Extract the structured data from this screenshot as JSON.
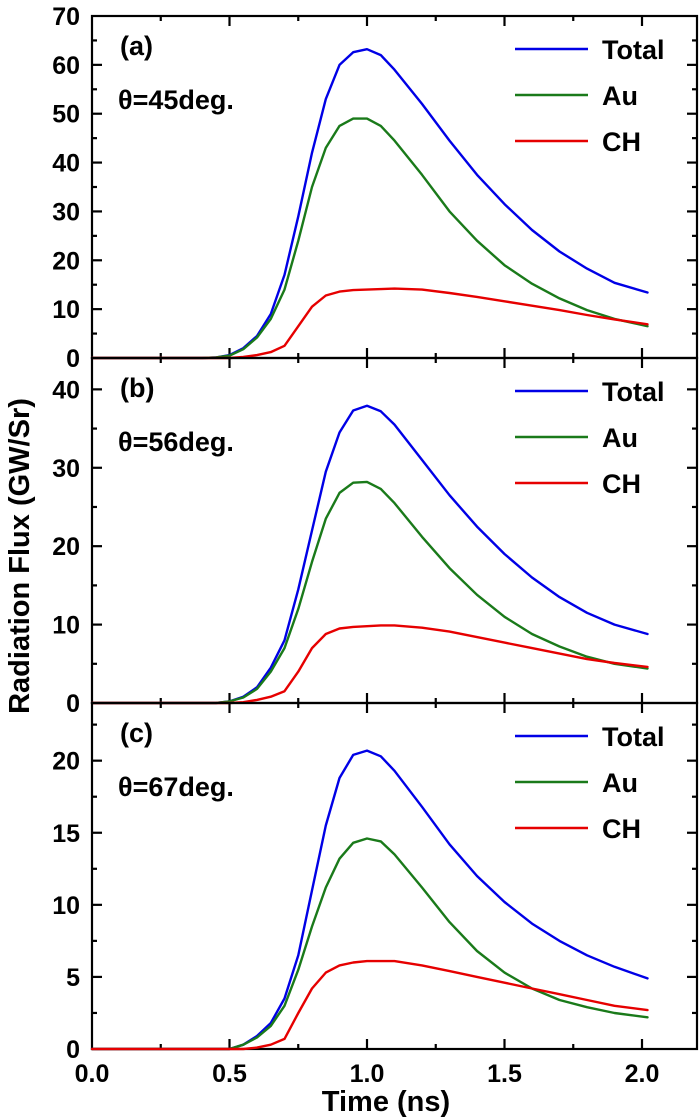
{
  "figure": {
    "ylabel": "Radiation Flux (GW/Sr)",
    "xlabel": "Time (ns)"
  },
  "colors": {
    "Total": "#0000e6",
    "Au": "#1a7a1a",
    "CH": "#e60000"
  },
  "chart_data": [
    {
      "type": "line",
      "panel_label": "(a)",
      "angle_label": "θ=45deg.",
      "xlim": [
        0.0,
        2.2
      ],
      "ylim": [
        0,
        70
      ],
      "xticks": [
        "0.0",
        "0.5",
        "1.0",
        "1.5",
        "2.0"
      ],
      "yticks": [
        "0",
        "10",
        "20",
        "30",
        "40",
        "50",
        "60",
        "70"
      ],
      "legend_position": "top-right",
      "x": [
        0.0,
        0.4,
        0.45,
        0.5,
        0.55,
        0.6,
        0.65,
        0.7,
        0.75,
        0.8,
        0.85,
        0.9,
        0.95,
        1.0,
        1.05,
        1.1,
        1.2,
        1.3,
        1.4,
        1.5,
        1.6,
        1.7,
        1.8,
        1.9,
        2.02
      ],
      "series": [
        {
          "name": "Total",
          "values": [
            0,
            0,
            0.1,
            0.6,
            2.0,
            4.5,
            9.0,
            17.0,
            29.0,
            42.0,
            53.0,
            60.0,
            62.6,
            63.2,
            62.0,
            59.0,
            52.0,
            44.5,
            37.5,
            31.5,
            26.2,
            21.8,
            18.3,
            15.4,
            13.4
          ]
        },
        {
          "name": "Au",
          "values": [
            0,
            0,
            0.1,
            0.5,
            1.8,
            4.2,
            8.0,
            14.0,
            24.0,
            35.0,
            43.0,
            47.5,
            49.0,
            49.0,
            47.5,
            44.5,
            37.5,
            30.0,
            24.0,
            19.0,
            15.2,
            12.2,
            9.8,
            8.0,
            6.5
          ]
        },
        {
          "name": "CH",
          "values": [
            0,
            0,
            0,
            0,
            0.2,
            0.6,
            1.2,
            2.5,
            6.5,
            10.5,
            12.8,
            13.6,
            13.9,
            14.0,
            14.1,
            14.2,
            14.0,
            13.3,
            12.5,
            11.6,
            10.7,
            9.8,
            8.8,
            7.9,
            6.9
          ]
        }
      ]
    },
    {
      "type": "line",
      "panel_label": "(b)",
      "angle_label": "θ=56deg.",
      "xlim": [
        0.0,
        2.2
      ],
      "ylim": [
        0,
        44
      ],
      "xticks": [
        "0.0",
        "0.5",
        "1.0",
        "1.5",
        "2.0"
      ],
      "yticks": [
        "0",
        "10",
        "20",
        "30",
        "40"
      ],
      "legend_position": "top-right",
      "x": [
        0.0,
        0.45,
        0.5,
        0.55,
        0.6,
        0.65,
        0.7,
        0.75,
        0.8,
        0.85,
        0.9,
        0.95,
        1.0,
        1.05,
        1.1,
        1.2,
        1.3,
        1.4,
        1.5,
        1.6,
        1.7,
        1.8,
        1.9,
        2.02
      ],
      "series": [
        {
          "name": "Total",
          "values": [
            0,
            0,
            0.2,
            0.8,
            2.0,
            4.5,
            8.0,
            14.5,
            22.0,
            29.5,
            34.5,
            37.3,
            37.9,
            37.2,
            35.5,
            31.0,
            26.5,
            22.5,
            19.0,
            16.0,
            13.5,
            11.5,
            10.0,
            8.8
          ]
        },
        {
          "name": "Au",
          "values": [
            0,
            0,
            0.2,
            0.7,
            1.8,
            4.0,
            7.0,
            12.0,
            18.0,
            23.5,
            26.8,
            28.1,
            28.2,
            27.3,
            25.5,
            21.2,
            17.2,
            13.8,
            11.0,
            8.8,
            7.2,
            5.9,
            5.0,
            4.4
          ]
        },
        {
          "name": "CH",
          "values": [
            0,
            0,
            0,
            0.1,
            0.4,
            0.8,
            1.5,
            4.0,
            7.0,
            8.8,
            9.5,
            9.7,
            9.8,
            9.9,
            9.9,
            9.6,
            9.1,
            8.4,
            7.7,
            7.0,
            6.3,
            5.6,
            5.1,
            4.6
          ]
        }
      ]
    },
    {
      "type": "line",
      "panel_label": "(c)",
      "angle_label": "θ=67deg.",
      "xlim": [
        0.0,
        2.2
      ],
      "ylim": [
        0,
        24
      ],
      "xticks": [
        "0.0",
        "0.5",
        "1.0",
        "1.5",
        "2.0"
      ],
      "yticks": [
        "0",
        "5",
        "10",
        "15",
        "20"
      ],
      "legend_position": "top-right",
      "x": [
        0.0,
        0.5,
        0.55,
        0.6,
        0.65,
        0.7,
        0.75,
        0.8,
        0.85,
        0.9,
        0.95,
        1.0,
        1.05,
        1.1,
        1.2,
        1.3,
        1.4,
        1.5,
        1.6,
        1.7,
        1.8,
        1.9,
        2.02
      ],
      "series": [
        {
          "name": "Total",
          "values": [
            0,
            0,
            0.3,
            0.9,
            1.8,
            3.5,
            6.5,
            11.0,
            15.5,
            18.8,
            20.4,
            20.7,
            20.3,
            19.3,
            16.8,
            14.2,
            12.0,
            10.2,
            8.7,
            7.5,
            6.5,
            5.7,
            4.9
          ]
        },
        {
          "name": "Au",
          "values": [
            0,
            0,
            0.3,
            0.8,
            1.6,
            3.0,
            5.5,
            8.5,
            11.2,
            13.2,
            14.3,
            14.6,
            14.4,
            13.5,
            11.2,
            8.8,
            6.8,
            5.3,
            4.2,
            3.4,
            2.9,
            2.5,
            2.2
          ]
        },
        {
          "name": "CH",
          "values": [
            0,
            0,
            0,
            0.1,
            0.3,
            0.7,
            2.5,
            4.2,
            5.3,
            5.8,
            6.0,
            6.1,
            6.1,
            6.1,
            5.8,
            5.4,
            5.0,
            4.6,
            4.2,
            3.8,
            3.4,
            3.0,
            2.7
          ]
        }
      ]
    }
  ]
}
